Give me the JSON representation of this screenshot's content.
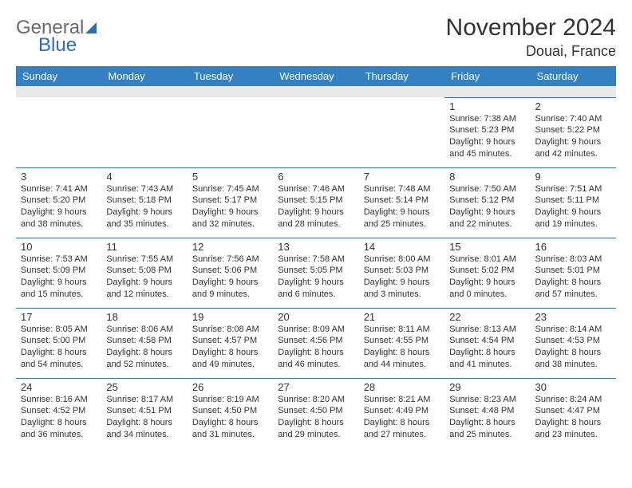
{
  "brand": {
    "line1": "General",
    "line2": "Blue"
  },
  "title": "November 2024",
  "location": "Douai, France",
  "colors": {
    "header_bg": "#3380c2",
    "header_text": "#ffffff",
    "cell_border": "#2d6fb5",
    "spacer_bg": "#e9e9e9",
    "text": "#333333"
  },
  "day_names": [
    "Sunday",
    "Monday",
    "Tuesday",
    "Wednesday",
    "Thursday",
    "Friday",
    "Saturday"
  ],
  "weeks": [
    [
      null,
      null,
      null,
      null,
      null,
      {
        "n": "1",
        "sr": "7:38 AM",
        "ss": "5:23 PM",
        "dl": "9 hours and 45 minutes."
      },
      {
        "n": "2",
        "sr": "7:40 AM",
        "ss": "5:22 PM",
        "dl": "9 hours and 42 minutes."
      }
    ],
    [
      {
        "n": "3",
        "sr": "7:41 AM",
        "ss": "5:20 PM",
        "dl": "9 hours and 38 minutes."
      },
      {
        "n": "4",
        "sr": "7:43 AM",
        "ss": "5:18 PM",
        "dl": "9 hours and 35 minutes."
      },
      {
        "n": "5",
        "sr": "7:45 AM",
        "ss": "5:17 PM",
        "dl": "9 hours and 32 minutes."
      },
      {
        "n": "6",
        "sr": "7:46 AM",
        "ss": "5:15 PM",
        "dl": "9 hours and 28 minutes."
      },
      {
        "n": "7",
        "sr": "7:48 AM",
        "ss": "5:14 PM",
        "dl": "9 hours and 25 minutes."
      },
      {
        "n": "8",
        "sr": "7:50 AM",
        "ss": "5:12 PM",
        "dl": "9 hours and 22 minutes."
      },
      {
        "n": "9",
        "sr": "7:51 AM",
        "ss": "5:11 PM",
        "dl": "9 hours and 19 minutes."
      }
    ],
    [
      {
        "n": "10",
        "sr": "7:53 AM",
        "ss": "5:09 PM",
        "dl": "9 hours and 15 minutes."
      },
      {
        "n": "11",
        "sr": "7:55 AM",
        "ss": "5:08 PM",
        "dl": "9 hours and 12 minutes."
      },
      {
        "n": "12",
        "sr": "7:56 AM",
        "ss": "5:06 PM",
        "dl": "9 hours and 9 minutes."
      },
      {
        "n": "13",
        "sr": "7:58 AM",
        "ss": "5:05 PM",
        "dl": "9 hours and 6 minutes."
      },
      {
        "n": "14",
        "sr": "8:00 AM",
        "ss": "5:03 PM",
        "dl": "9 hours and 3 minutes."
      },
      {
        "n": "15",
        "sr": "8:01 AM",
        "ss": "5:02 PM",
        "dl": "9 hours and 0 minutes."
      },
      {
        "n": "16",
        "sr": "8:03 AM",
        "ss": "5:01 PM",
        "dl": "8 hours and 57 minutes."
      }
    ],
    [
      {
        "n": "17",
        "sr": "8:05 AM",
        "ss": "5:00 PM",
        "dl": "8 hours and 54 minutes."
      },
      {
        "n": "18",
        "sr": "8:06 AM",
        "ss": "4:58 PM",
        "dl": "8 hours and 52 minutes."
      },
      {
        "n": "19",
        "sr": "8:08 AM",
        "ss": "4:57 PM",
        "dl": "8 hours and 49 minutes."
      },
      {
        "n": "20",
        "sr": "8:09 AM",
        "ss": "4:56 PM",
        "dl": "8 hours and 46 minutes."
      },
      {
        "n": "21",
        "sr": "8:11 AM",
        "ss": "4:55 PM",
        "dl": "8 hours and 44 minutes."
      },
      {
        "n": "22",
        "sr": "8:13 AM",
        "ss": "4:54 PM",
        "dl": "8 hours and 41 minutes."
      },
      {
        "n": "23",
        "sr": "8:14 AM",
        "ss": "4:53 PM",
        "dl": "8 hours and 38 minutes."
      }
    ],
    [
      {
        "n": "24",
        "sr": "8:16 AM",
        "ss": "4:52 PM",
        "dl": "8 hours and 36 minutes."
      },
      {
        "n": "25",
        "sr": "8:17 AM",
        "ss": "4:51 PM",
        "dl": "8 hours and 34 minutes."
      },
      {
        "n": "26",
        "sr": "8:19 AM",
        "ss": "4:50 PM",
        "dl": "8 hours and 31 minutes."
      },
      {
        "n": "27",
        "sr": "8:20 AM",
        "ss": "4:50 PM",
        "dl": "8 hours and 29 minutes."
      },
      {
        "n": "28",
        "sr": "8:21 AM",
        "ss": "4:49 PM",
        "dl": "8 hours and 27 minutes."
      },
      {
        "n": "29",
        "sr": "8:23 AM",
        "ss": "4:48 PM",
        "dl": "8 hours and 25 minutes."
      },
      {
        "n": "30",
        "sr": "8:24 AM",
        "ss": "4:47 PM",
        "dl": "8 hours and 23 minutes."
      }
    ]
  ],
  "labels": {
    "sunrise": "Sunrise: ",
    "sunset": "Sunset: ",
    "daylight": "Daylight: "
  }
}
